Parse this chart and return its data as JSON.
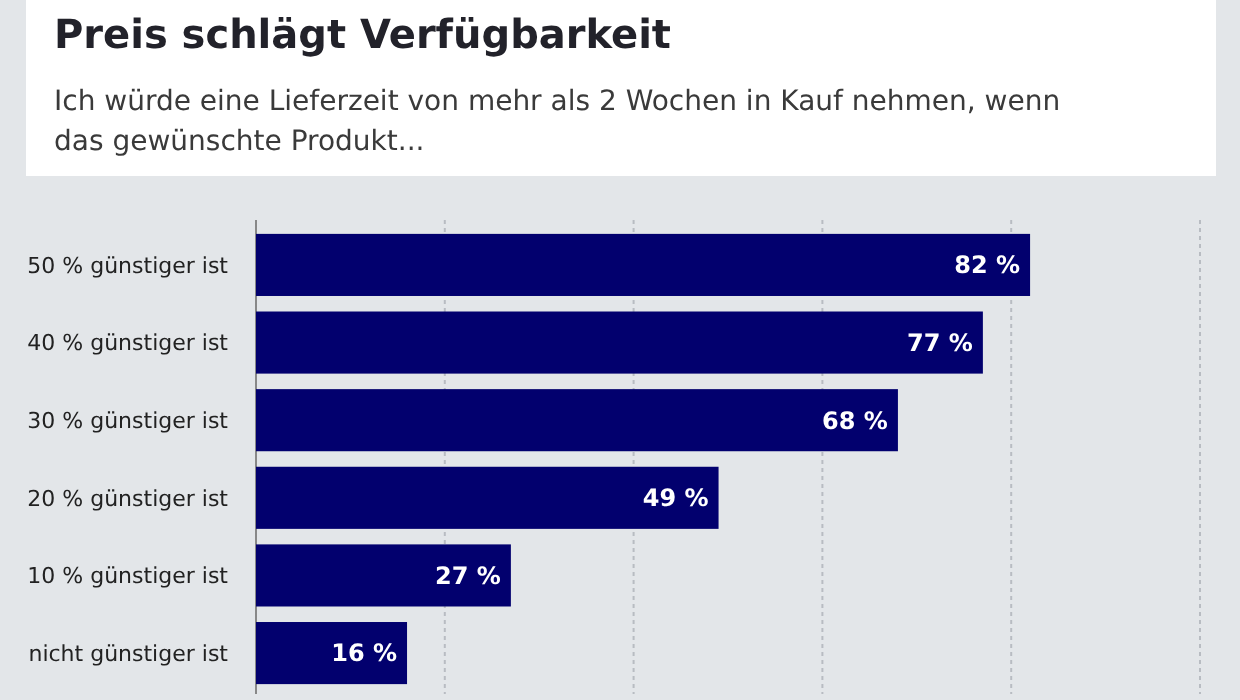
{
  "chart_data": {
    "type": "bar",
    "orientation": "horizontal",
    "title": "Preis schlägt Verfügbarkeit",
    "subtitle": "Ich würde eine Lieferzeit von mehr als 2 Wochen in Kauf nehmen, wenn das gewünschte Produkt...",
    "categories": [
      "50 % günstiger ist",
      "40 % günstiger ist",
      "30 % günstiger ist",
      "20 % günstiger ist",
      "10 % günstiger ist",
      "nicht günstiger ist"
    ],
    "values": [
      82,
      77,
      68,
      49,
      27,
      16
    ],
    "color": "#02006e",
    "value_labels": [
      "82 %",
      "77 %",
      "68 %",
      "49 %",
      "27 %",
      "16 %"
    ],
    "xlim": [
      0,
      100
    ],
    "xticks": [
      {
        "value": 0,
        "label": null
      },
      {
        "value": 20,
        "label": null
      },
      {
        "value": 40,
        "label": null
      },
      {
        "value": 60,
        "label": null
      },
      {
        "value": 80,
        "label": null
      },
      {
        "value": 100,
        "label": null
      }
    ],
    "tick_labels": "y",
    "grid": "x"
  }
}
